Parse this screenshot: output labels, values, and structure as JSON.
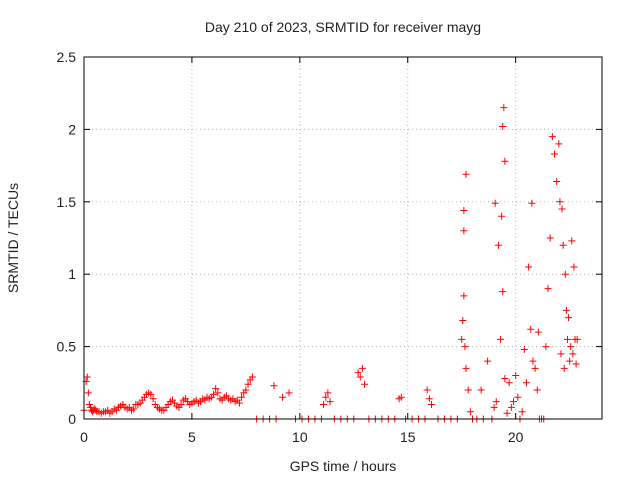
{
  "chart_data": {
    "type": "scatter",
    "title": "Day 210 of 2023, SRMTID for receiver mayg",
    "xlabel": "GPS time / hours",
    "ylabel": "SRMTID / TECUs",
    "xlim": [
      0,
      24
    ],
    "ylim": [
      0,
      2.5
    ],
    "xticks": [
      0,
      5,
      10,
      15,
      20
    ],
    "xtick_labels": [
      "0",
      "5",
      "10",
      "15",
      "20"
    ],
    "yticks": [
      0,
      0.5,
      1,
      1.5,
      2,
      2.5
    ],
    "ytick_labels": [
      "0",
      "0.5",
      "1",
      "1.5",
      "2",
      "2.5"
    ],
    "grid": true,
    "marker": "+",
    "colors": {
      "series": "#ff0000",
      "axis": "#000000",
      "grid": "#b0b0b0"
    },
    "series": [
      {
        "name": "SRMTID",
        "x": [
          0.0,
          0.1,
          0.15,
          0.2,
          0.25,
          0.3,
          0.35,
          0.4,
          0.45,
          0.5,
          0.55,
          0.6,
          0.7,
          0.8,
          0.9,
          1.0,
          1.1,
          1.2,
          1.3,
          1.4,
          1.5,
          1.6,
          1.7,
          1.8,
          1.9,
          2.0,
          2.1,
          2.2,
          2.3,
          2.4,
          2.5,
          2.6,
          2.7,
          2.8,
          2.9,
          3.0,
          3.1,
          3.2,
          3.3,
          3.4,
          3.5,
          3.6,
          3.7,
          3.8,
          3.9,
          4.0,
          4.1,
          4.2,
          4.3,
          4.4,
          4.5,
          4.6,
          4.7,
          4.8,
          4.9,
          5.0,
          5.1,
          5.2,
          5.3,
          5.4,
          5.5,
          5.6,
          5.7,
          5.8,
          5.9,
          6.0,
          6.1,
          6.2,
          6.3,
          6.4,
          6.5,
          6.6,
          6.7,
          6.8,
          6.9,
          7.0,
          7.1,
          7.2,
          7.3,
          7.4,
          7.5,
          7.6,
          7.7,
          7.8,
          8.0,
          8.3,
          8.6,
          8.9,
          8.8,
          9.2,
          9.5,
          9.8,
          10.1,
          10.4,
          10.7,
          11.0,
          11.1,
          11.2,
          11.3,
          11.4,
          11.6,
          11.9,
          12.2,
          12.5,
          12.7,
          12.8,
          12.9,
          13.0,
          13.2,
          13.5,
          13.8,
          14.1,
          14.4,
          14.6,
          14.7,
          14.9,
          15.2,
          15.5,
          15.8,
          15.9,
          16.0,
          16.1,
          16.4,
          16.7,
          17.0,
          17.3,
          17.5,
          17.55,
          17.6,
          17.6,
          17.6,
          17.65,
          17.7,
          17.7,
          17.8,
          17.9,
          18.0,
          18.2,
          18.4,
          18.5,
          18.7,
          18.9,
          19.0,
          19.05,
          19.1,
          19.2,
          19.3,
          19.35,
          19.4,
          19.4,
          19.45,
          19.5,
          19.5,
          19.6,
          19.7,
          19.8,
          19.9,
          20.0,
          20.1,
          20.2,
          20.3,
          20.4,
          20.5,
          20.6,
          20.7,
          20.75,
          20.8,
          20.9,
          21.0,
          21.05,
          21.1,
          21.2,
          21.3,
          21.4,
          21.5,
          21.6,
          21.7,
          21.8,
          21.9,
          22.0,
          22.05,
          22.1,
          22.15,
          22.2,
          22.25,
          22.3,
          22.35,
          22.4,
          22.45,
          22.5,
          22.55,
          22.6,
          22.65,
          22.7,
          22.75,
          22.8,
          22.85
        ],
        "y": [
          0.06,
          0.26,
          0.29,
          0.18,
          0.1,
          0.08,
          0.06,
          0.05,
          0.06,
          0.07,
          0.06,
          0.05,
          0.05,
          0.04,
          0.05,
          0.05,
          0.06,
          0.04,
          0.05,
          0.07,
          0.06,
          0.08,
          0.09,
          0.1,
          0.08,
          0.07,
          0.08,
          0.06,
          0.07,
          0.1,
          0.1,
          0.11,
          0.13,
          0.15,
          0.17,
          0.18,
          0.17,
          0.14,
          0.1,
          0.08,
          0.07,
          0.06,
          0.06,
          0.08,
          0.1,
          0.12,
          0.13,
          0.11,
          0.09,
          0.08,
          0.1,
          0.13,
          0.14,
          0.12,
          0.1,
          0.11,
          0.12,
          0.13,
          0.11,
          0.12,
          0.14,
          0.13,
          0.15,
          0.14,
          0.15,
          0.17,
          0.21,
          0.18,
          0.14,
          0.13,
          0.15,
          0.16,
          0.14,
          0.13,
          0.14,
          0.12,
          0.13,
          0.11,
          0.15,
          0.18,
          0.2,
          0.24,
          0.27,
          0.29,
          0.0,
          0.0,
          0.0,
          0.0,
          0.23,
          0.15,
          0.18,
          0.0,
          0.0,
          0.0,
          0.0,
          0.0,
          0.1,
          0.15,
          0.18,
          0.12,
          0.0,
          0.0,
          0.0,
          0.0,
          0.32,
          0.29,
          0.35,
          0.24,
          0.0,
          0.0,
          0.0,
          0.0,
          0.0,
          0.14,
          0.15,
          0.0,
          0.0,
          0.0,
          0.0,
          0.2,
          0.14,
          0.1,
          0.0,
          0.0,
          0.0,
          0.0,
          0.55,
          0.68,
          1.44,
          1.3,
          0.85,
          0.5,
          1.69,
          0.35,
          0.2,
          0.05,
          0.0,
          0.0,
          0.2,
          0.0,
          0.4,
          0.0,
          0.08,
          1.49,
          0.12,
          1.2,
          0.55,
          1.4,
          2.02,
          0.88,
          2.15,
          1.78,
          0.28,
          0.04,
          0.25,
          0.08,
          0.12,
          0.3,
          0.15,
          0.0,
          0.05,
          0.48,
          0.25,
          1.05,
          0.62,
          1.49,
          0.4,
          0.35,
          0.2,
          0.6,
          0.0,
          0.0,
          0.0,
          0.5,
          0.9,
          1.25,
          1.95,
          1.83,
          1.64,
          1.9,
          1.5,
          0.45,
          1.45,
          1.2,
          0.35,
          1.0,
          0.75,
          0.55,
          0.7,
          0.4,
          0.5,
          1.23,
          0.45,
          1.05,
          0.55,
          0.38,
          0.55
        ]
      }
    ]
  }
}
